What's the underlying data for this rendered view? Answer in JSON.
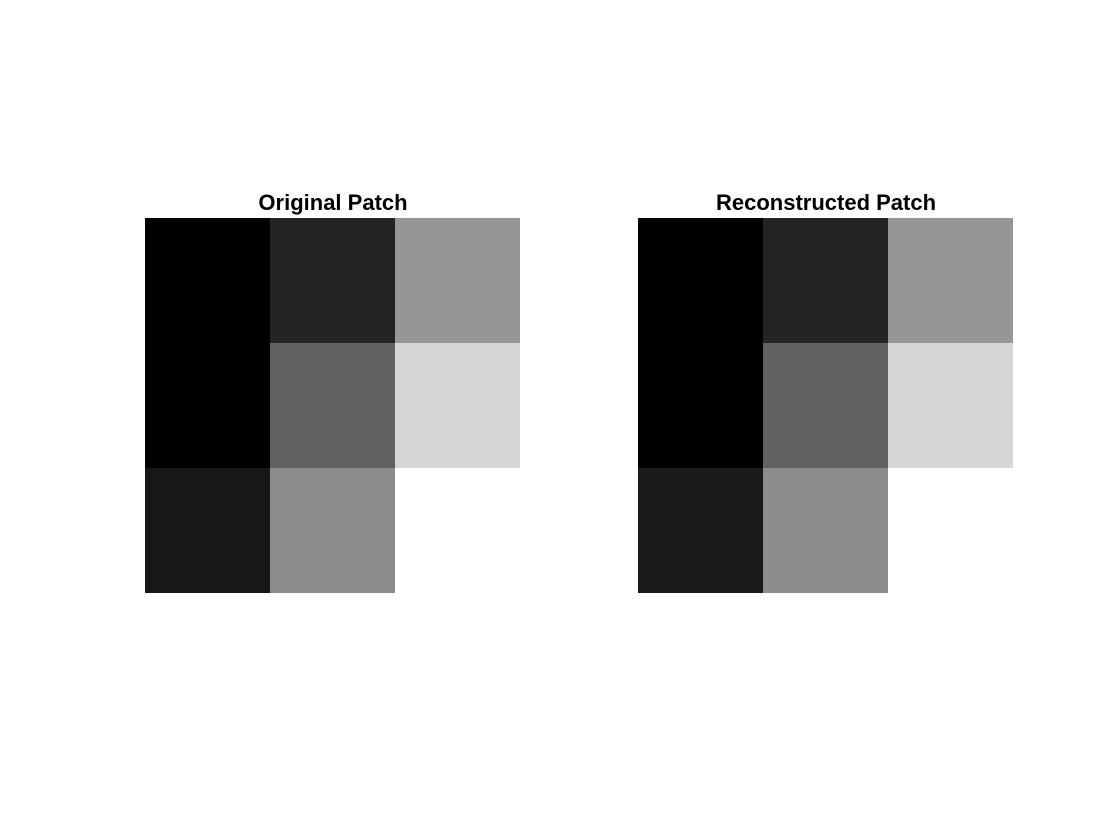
{
  "chart_data": [
    {
      "type": "heatmap",
      "title": "Original Patch",
      "colormap": "gray",
      "clim": [
        0,
        1
      ],
      "values": [
        [
          0.0,
          0.14,
          0.59
        ],
        [
          0.0,
          0.38,
          0.84
        ],
        [
          0.09,
          0.55,
          1.0
        ]
      ]
    },
    {
      "type": "heatmap",
      "title": "Reconstructed Patch",
      "colormap": "gray",
      "clim": [
        0,
        1
      ],
      "values": [
        [
          0.0,
          0.14,
          0.59
        ],
        [
          0.0,
          0.38,
          0.84
        ],
        [
          0.1,
          0.55,
          1.0
        ]
      ]
    }
  ]
}
